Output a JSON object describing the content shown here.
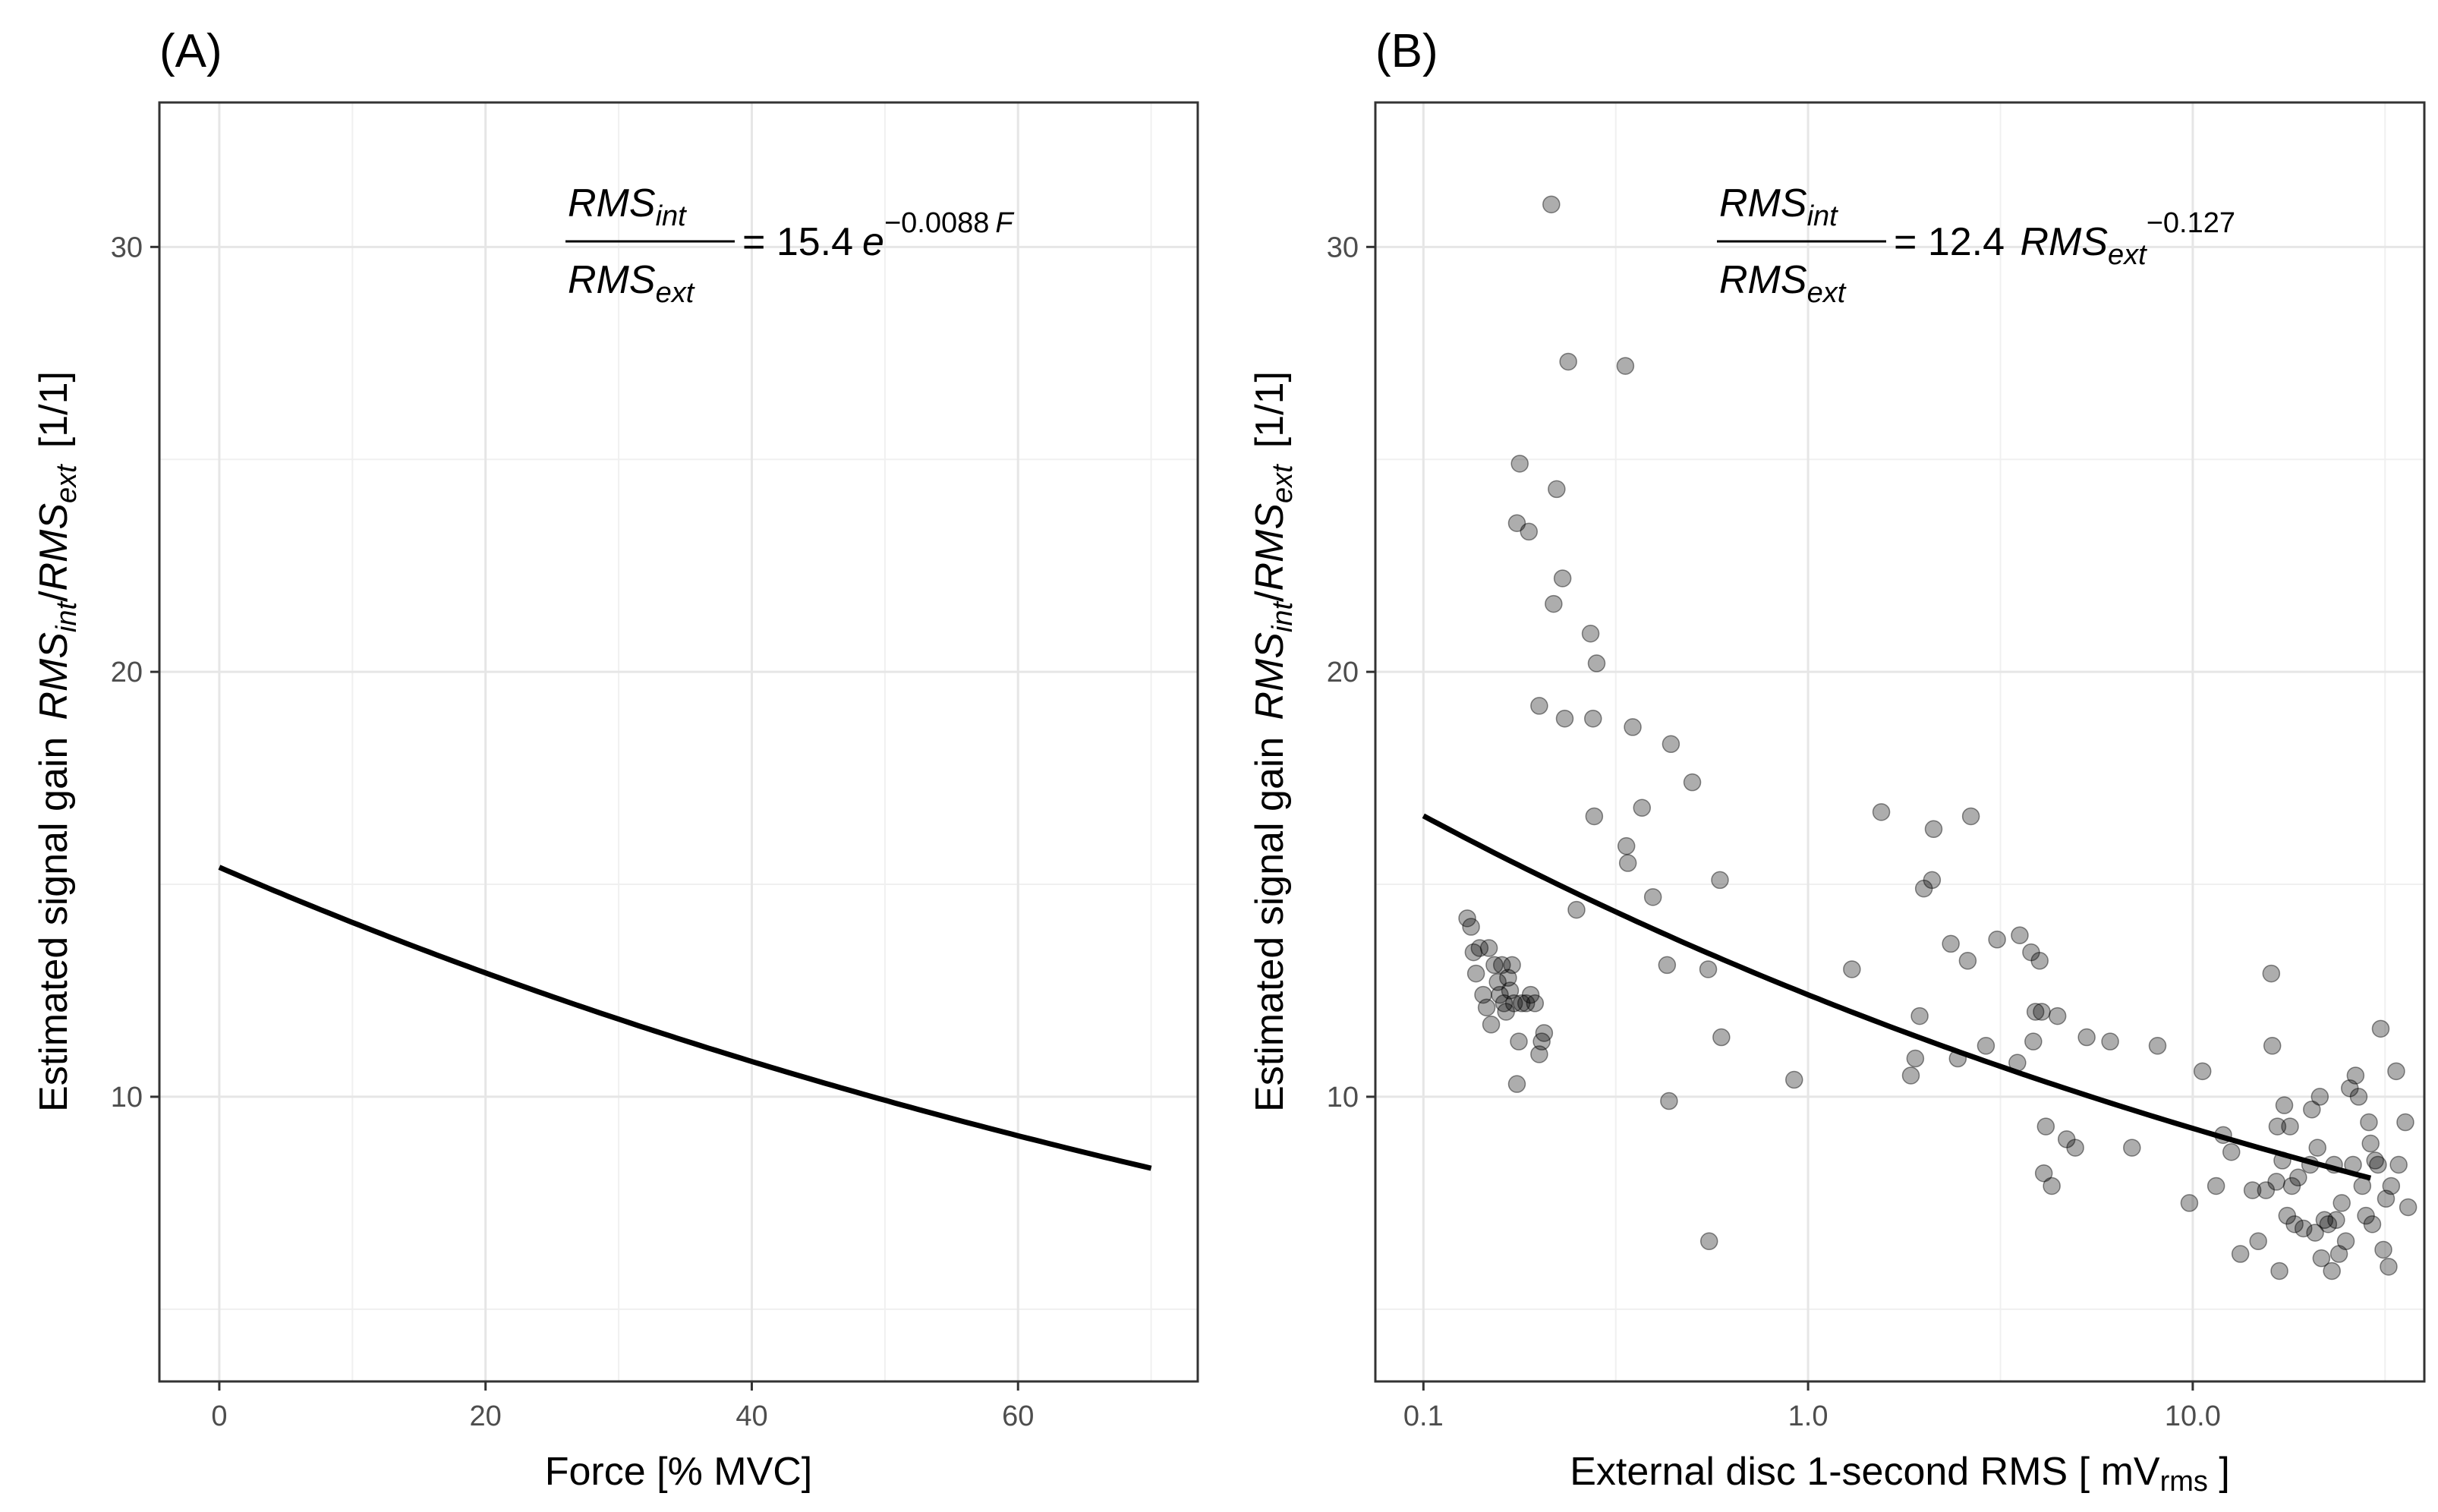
{
  "chart_data": [
    {
      "panel_label": "(A)",
      "type": "line",
      "xlabel": "Force [% MVC]",
      "ylabel": {
        "prefix": "Estimated signal gain",
        "num": "RMS",
        "num_sub": "int",
        "den": "RMS",
        "den_sub": "ext",
        "unit": "[1/1]"
      },
      "xlim": [
        -4.5,
        73.5
      ],
      "ylim": [
        3.3,
        33.4
      ],
      "x_ticks": [
        0,
        20,
        40,
        60
      ],
      "x_tick_labels": [
        "0",
        "20",
        "40",
        "60"
      ],
      "y_ticks": [
        10,
        20,
        30
      ],
      "y_tick_labels": [
        "10",
        "20",
        "30"
      ],
      "grid": true,
      "equation": {
        "num": "RMS",
        "num_sub": "int",
        "den": "RMS",
        "den_sub": "ext",
        "rhs": "= 15.4",
        "base": "e",
        "exponent": "−0.0088",
        "exponent_var": "F"
      },
      "fit": {
        "formula": "15.4 * exp(-0.0088 * F)",
        "x_range": [
          0,
          70
        ]
      }
    },
    {
      "panel_label": "(B)",
      "type": "scatter",
      "xlabel": "External disc 1-second RMS [ mV",
      "xlabel_sub": "rms",
      "xlabel_end": " ]",
      "ylabel": {
        "prefix": "Estimated signal gain",
        "num": "RMS",
        "num_sub": "int",
        "den": "RMS",
        "den_sub": "ext",
        "unit": "[1/1]"
      },
      "x_scale": "log10",
      "xlim": [
        0.075,
        40
      ],
      "ylim": [
        3.3,
        33.4
      ],
      "x_ticks": [
        0.1,
        1.0,
        10.0
      ],
      "x_tick_labels": [
        "0.1",
        "1.0",
        "10.0"
      ],
      "y_ticks": [
        10,
        20,
        30
      ],
      "y_tick_labels": [
        "10",
        "20",
        "30"
      ],
      "grid": true,
      "equation": {
        "num": "RMS",
        "num_sub": "int",
        "den": "RMS",
        "den_sub": "ext",
        "rhs": "= 12.4 ",
        "var": "RMS",
        "var_sub": "ext",
        "exponent": "−0.127"
      },
      "fit": {
        "formula": "12.4 * x^-0.127",
        "x_range": [
          0.1,
          29
        ]
      },
      "points": [
        [
          0.13,
          14.2
        ],
        [
          0.133,
          14.0
        ],
        [
          0.135,
          13.4
        ],
        [
          0.137,
          12.9
        ],
        [
          0.14,
          13.5
        ],
        [
          0.143,
          12.4
        ],
        [
          0.146,
          12.1
        ],
        [
          0.148,
          13.5
        ],
        [
          0.15,
          11.7
        ],
        [
          0.153,
          13.1
        ],
        [
          0.156,
          12.7
        ],
        [
          0.158,
          12.4
        ],
        [
          0.16,
          13.1
        ],
        [
          0.162,
          12.2
        ],
        [
          0.164,
          12.0
        ],
        [
          0.166,
          12.8
        ],
        [
          0.168,
          12.5
        ],
        [
          0.17,
          13.1
        ],
        [
          0.172,
          12.2
        ],
        [
          0.175,
          10.3
        ],
        [
          0.177,
          11.3
        ],
        [
          0.18,
          12.2
        ],
        [
          0.185,
          12.2
        ],
        [
          0.19,
          12.4
        ],
        [
          0.195,
          12.2
        ],
        [
          0.2,
          11.0
        ],
        [
          0.203,
          11.3
        ],
        [
          0.206,
          11.5
        ],
        [
          0.175,
          23.5
        ],
        [
          0.178,
          24.9
        ],
        [
          0.188,
          23.3
        ],
        [
          0.2,
          19.2
        ],
        [
          0.215,
          31.0
        ],
        [
          0.218,
          21.6
        ],
        [
          0.222,
          24.3
        ],
        [
          0.23,
          22.2
        ],
        [
          0.233,
          18.9
        ],
        [
          0.238,
          27.3
        ],
        [
          0.25,
          14.4
        ],
        [
          0.272,
          20.9
        ],
        [
          0.276,
          18.9
        ],
        [
          0.278,
          16.6
        ],
        [
          0.282,
          20.2
        ],
        [
          0.335,
          27.2
        ],
        [
          0.337,
          15.9
        ],
        [
          0.34,
          15.5
        ],
        [
          0.35,
          18.7
        ],
        [
          0.37,
          16.8
        ],
        [
          0.395,
          14.7
        ],
        [
          0.43,
          13.1
        ],
        [
          0.44,
          18.3
        ],
        [
          0.435,
          9.9
        ],
        [
          0.5,
          17.4
        ],
        [
          0.55,
          13.0
        ],
        [
          0.553,
          6.6
        ],
        [
          0.59,
          15.1
        ],
        [
          0.595,
          11.4
        ],
        [
          0.92,
          10.4
        ],
        [
          1.3,
          13.0
        ],
        [
          1.55,
          16.7
        ],
        [
          1.85,
          10.5
        ],
        [
          1.9,
          10.9
        ],
        [
          1.95,
          11.9
        ],
        [
          2.0,
          14.9
        ],
        [
          2.1,
          15.1
        ],
        [
          2.12,
          16.3
        ],
        [
          2.35,
          13.6
        ],
        [
          2.45,
          10.9
        ],
        [
          2.6,
          13.2
        ],
        [
          2.65,
          16.6
        ],
        [
          2.9,
          11.2
        ],
        [
          3.1,
          13.7
        ],
        [
          3.5,
          10.8
        ],
        [
          3.55,
          13.8
        ],
        [
          3.8,
          13.4
        ],
        [
          3.85,
          11.3
        ],
        [
          3.9,
          12.0
        ],
        [
          4.0,
          13.2
        ],
        [
          4.05,
          12.0
        ],
        [
          4.1,
          8.2
        ],
        [
          4.15,
          9.3
        ],
        [
          4.3,
          7.9
        ],
        [
          4.45,
          11.9
        ],
        [
          4.7,
          9.0
        ],
        [
          4.95,
          8.8
        ],
        [
          5.3,
          11.4
        ],
        [
          6.1,
          11.3
        ],
        [
          6.95,
          8.8
        ],
        [
          8.1,
          11.2
        ],
        [
          9.8,
          7.5
        ],
        [
          10.6,
          10.6
        ],
        [
          11.5,
          7.9
        ],
        [
          12.0,
          9.1
        ],
        [
          12.6,
          8.7
        ],
        [
          13.3,
          6.3
        ],
        [
          14.3,
          7.8
        ],
        [
          14.8,
          6.6
        ],
        [
          15.5,
          7.8
        ],
        [
          16.0,
          12.9
        ],
        [
          16.1,
          11.2
        ],
        [
          16.5,
          8.0
        ],
        [
          16.6,
          9.3
        ],
        [
          16.8,
          5.9
        ],
        [
          17.1,
          8.5
        ],
        [
          17.3,
          9.8
        ],
        [
          17.6,
          7.2
        ],
        [
          17.9,
          9.3
        ],
        [
          18.1,
          7.9
        ],
        [
          18.4,
          7.0
        ],
        [
          18.8,
          8.1
        ],
        [
          19.4,
          6.9
        ],
        [
          20.2,
          8.4
        ],
        [
          20.4,
          9.7
        ],
        [
          20.8,
          6.8
        ],
        [
          21.1,
          8.8
        ],
        [
          21.4,
          10.0
        ],
        [
          21.6,
          6.2
        ],
        [
          22.0,
          7.1
        ],
        [
          22.5,
          7.0
        ],
        [
          23.0,
          5.9
        ],
        [
          23.3,
          8.4
        ],
        [
          23.6,
          7.1
        ],
        [
          24.0,
          6.3
        ],
        [
          24.4,
          7.5
        ],
        [
          25.0,
          6.6
        ],
        [
          25.6,
          10.2
        ],
        [
          26.1,
          8.4
        ],
        [
          26.5,
          10.5
        ],
        [
          27.0,
          10.0
        ],
        [
          27.6,
          7.9
        ],
        [
          28.2,
          7.2
        ],
        [
          28.7,
          9.4
        ],
        [
          29.0,
          8.9
        ],
        [
          29.3,
          7.0
        ],
        [
          29.8,
          8.5
        ],
        [
          30.3,
          8.4
        ],
        [
          30.8,
          11.6
        ],
        [
          31.3,
          6.4
        ],
        [
          31.8,
          7.6
        ],
        [
          32.3,
          6.0
        ],
        [
          32.8,
          7.9
        ],
        [
          33.8,
          10.6
        ],
        [
          34.3,
          8.4
        ],
        [
          35.7,
          9.4
        ],
        [
          36.3,
          7.4
        ]
      ]
    }
  ]
}
